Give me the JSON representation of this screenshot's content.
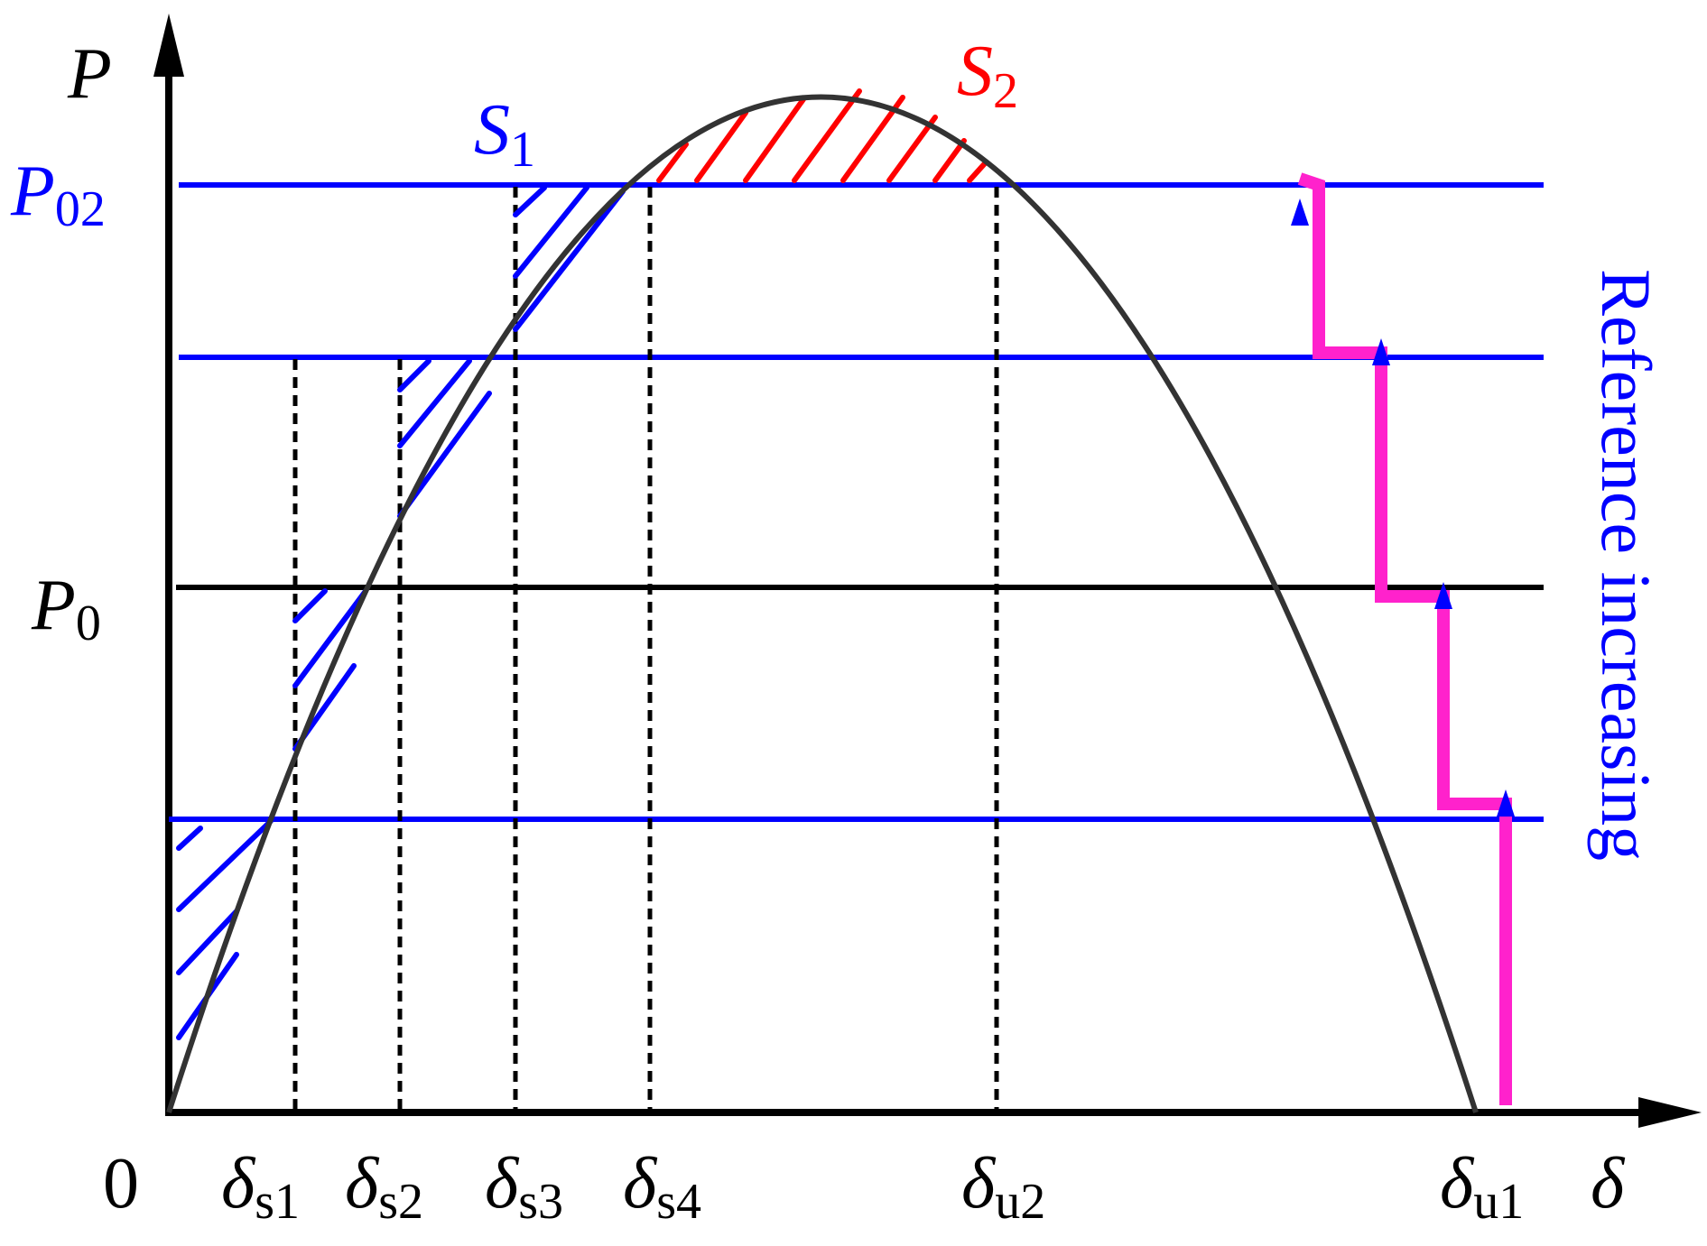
{
  "axes": {
    "y_label": "P",
    "x_label": "δ",
    "origin_label": "0"
  },
  "power_levels": [
    {
      "id": "p02",
      "main": "P",
      "sub": "02",
      "color": "#0000ff"
    },
    {
      "id": "p0",
      "main": "P",
      "sub": "0",
      "color": "#000000"
    }
  ],
  "angle_labels": [
    {
      "id": "ds1",
      "main": "δ",
      "sub": "s1"
    },
    {
      "id": "ds2",
      "main": "δ",
      "sub": "s2"
    },
    {
      "id": "ds3",
      "main": "δ",
      "sub": "s3"
    },
    {
      "id": "ds4",
      "main": "δ",
      "sub": "s4"
    },
    {
      "id": "du2",
      "main": "δ",
      "sub": "u2"
    },
    {
      "id": "du1",
      "main": "δ",
      "sub": "u1"
    }
  ],
  "areas": [
    {
      "id": "s1",
      "main": "S",
      "sub": "1",
      "color": "#0000ff"
    },
    {
      "id": "s2",
      "main": "S",
      "sub": "2",
      "color": "#ff0000"
    }
  ],
  "side_note": {
    "text": "Reference increasing",
    "color": "#0000ff"
  },
  "colors": {
    "curve": "#333333",
    "reference_lines": "#0000ff",
    "p0_line": "#000000",
    "staircase": "#ff22cc",
    "area_s1": "#0000ff",
    "area_s2": "#ff0000"
  }
}
